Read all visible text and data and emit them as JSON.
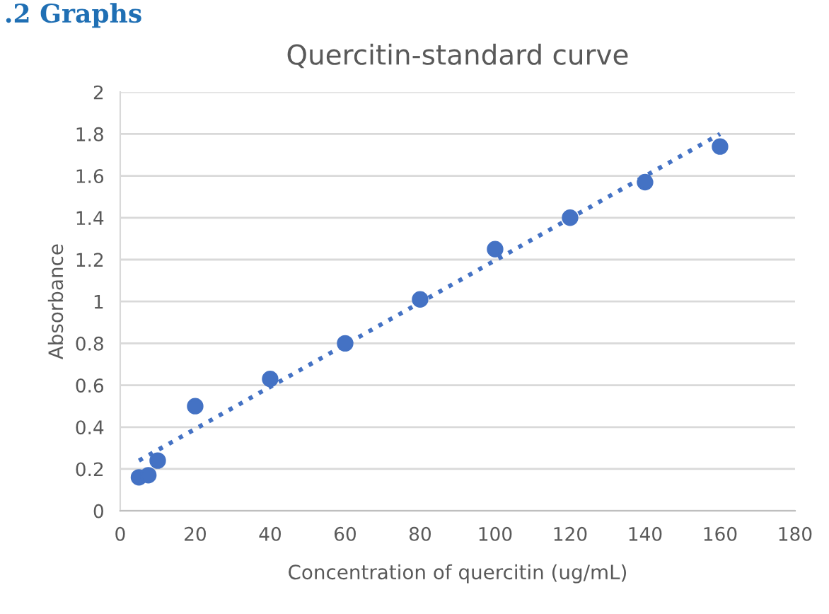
{
  "chart_data": {
    "type": "scatter",
    "title": "Quercitin-standard curve",
    "xlabel": "Concentration of quercitin (ug/mL)",
    "ylabel": "Absorbance",
    "annotations": [
      ".2 Graphs"
    ],
    "series": [
      {
        "color": "#4472c4",
        "marker": "circle",
        "x": [
          5,
          7.5,
          10,
          20,
          40,
          60,
          80,
          100,
          120,
          140,
          160
        ],
        "values": [
          0.16,
          0.17,
          0.24,
          0.5,
          0.63,
          0.8,
          1.01,
          1.25,
          1.4,
          1.57,
          1.74
        ]
      },
      {
        "type": "line",
        "color": "#4472c4",
        "line_style": "dotted",
        "x": [
          5,
          160
        ],
        "values": [
          0.24,
          1.8
        ]
      }
    ],
    "xlim": [
      0,
      180
    ],
    "xticks": [
      0,
      20,
      40,
      60,
      80,
      100,
      120,
      140,
      160,
      180
    ],
    "ylim": [
      0,
      2
    ],
    "yticks": [
      0,
      0.2,
      0.4,
      0.6,
      0.8,
      1,
      1.2,
      1.4,
      1.6,
      1.8,
      2
    ],
    "grid": "y",
    "legend": false
  }
}
